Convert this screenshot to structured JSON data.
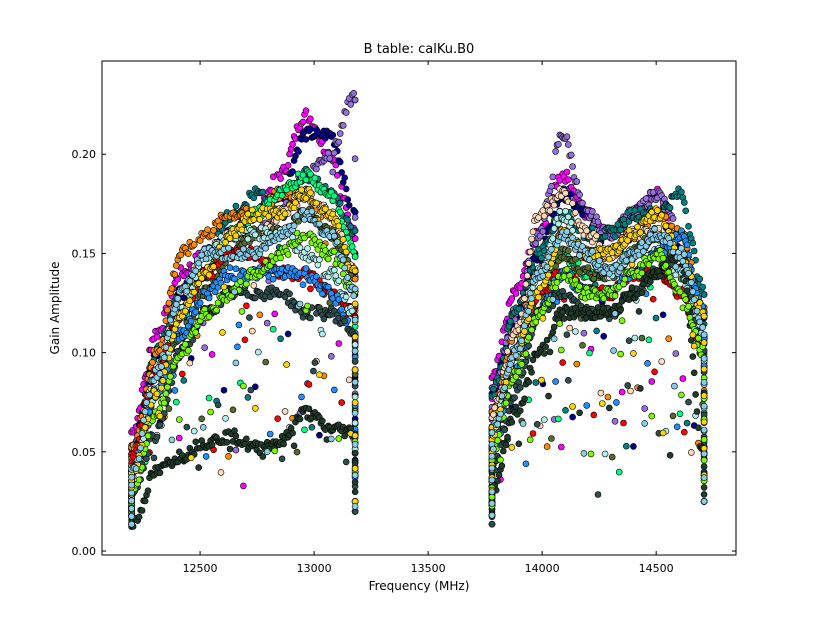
{
  "chart_data": {
    "type": "scatter",
    "title": "B table: calKu.B0",
    "xlabel": "Frequency (MHz)",
    "ylabel": "Gain Amplitude",
    "xlim": [
      12070,
      14850
    ],
    "ylim": [
      -0.002,
      0.247
    ],
    "x_ticks": [
      12500,
      13000,
      13500,
      14000,
      14500
    ],
    "x_tick_labels": [
      "12500",
      "13000",
      "13500",
      "14000",
      "14500"
    ],
    "y_ticks": [
      0.0,
      0.05,
      0.1,
      0.15,
      0.2
    ],
    "y_tick_labels": [
      "0.00",
      "0.05",
      "0.10",
      "0.15",
      "0.20"
    ],
    "grid": false,
    "legend": "none",
    "series": [
      {
        "color": "#ff00ff",
        "segments": [
          {
            "x_start": 12200,
            "x_end": 13180,
            "y": [
              0.06,
              0.11,
              0.14,
              0.15,
              0.16,
              0.17,
              0.19,
              0.22,
              0.2,
              0.16
            ],
            "dip": [
              0.03,
              0.05,
              0.04
            ]
          },
          {
            "x_start": 13780,
            "x_end": 14710,
            "y": [
              0.09,
              0.13,
              0.16,
              0.19,
              0.17,
              0.16,
              0.17,
              0.18,
              0.15,
              0.12
            ],
            "dip": [
              0.03,
              0.04,
              0.05
            ]
          }
        ]
      },
      {
        "color": "#00008b",
        "segments": [
          {
            "x_start": 12200,
            "x_end": 13180,
            "y": [
              0.05,
              0.1,
              0.13,
              0.15,
              0.16,
              0.17,
              0.18,
              0.21,
              0.21,
              0.17
            ],
            "dip": [
              0.04,
              0.06,
              0.05
            ]
          },
          {
            "x_start": 13780,
            "x_end": 14710,
            "y": [
              0.08,
              0.12,
              0.15,
              0.18,
              0.17,
              0.15,
              0.16,
              0.17,
              0.15,
              0.12
            ],
            "dip": [
              0.04,
              0.05,
              0.05
            ]
          }
        ]
      },
      {
        "color": "#9370db",
        "segments": [
          {
            "x_start": 12200,
            "x_end": 13180,
            "y": [
              0.05,
              0.09,
              0.12,
              0.14,
              0.15,
              0.16,
              0.17,
              0.19,
              0.2,
              0.23
            ],
            "dip": [
              0.03,
              0.05,
              0.04
            ]
          },
          {
            "x_start": 13780,
            "x_end": 14710,
            "y": [
              0.08,
              0.12,
              0.16,
              0.21,
              0.17,
              0.16,
              0.17,
              0.18,
              0.16,
              0.12
            ],
            "dip": [
              0.03,
              0.04,
              0.05
            ]
          }
        ]
      },
      {
        "color": "#008080",
        "segments": [
          {
            "x_start": 12200,
            "x_end": 13180,
            "y": [
              0.05,
              0.1,
              0.13,
              0.15,
              0.17,
              0.18,
              0.17,
              0.19,
              0.18,
              0.16
            ],
            "dip": [
              0.04,
              0.05,
              0.05
            ]
          },
          {
            "x_start": 13780,
            "x_end": 14710,
            "y": [
              0.08,
              0.12,
              0.15,
              0.17,
              0.16,
              0.16,
              0.17,
              0.17,
              0.18,
              0.13
            ],
            "dip": [
              0.04,
              0.05,
              0.05
            ]
          }
        ]
      },
      {
        "color": "#ff8c00",
        "segments": [
          {
            "x_start": 12200,
            "x_end": 13180,
            "y": [
              0.05,
              0.1,
              0.15,
              0.16,
              0.17,
              0.17,
              0.18,
              0.18,
              0.16,
              0.14
            ],
            "dip": [
              0.04,
              0.06,
              0.05
            ]
          },
          {
            "x_start": 13780,
            "x_end": 14710,
            "y": [
              0.07,
              0.11,
              0.14,
              0.16,
              0.15,
              0.15,
              0.16,
              0.17,
              0.16,
              0.12
            ],
            "dip": [
              0.04,
              0.05,
              0.05
            ]
          }
        ]
      },
      {
        "color": "#00ff7f",
        "segments": [
          {
            "x_start": 12200,
            "x_end": 13180,
            "y": [
              0.04,
              0.09,
              0.12,
              0.14,
              0.16,
              0.17,
              0.18,
              0.19,
              0.18,
              0.15
            ],
            "dip": [
              0.04,
              0.05,
              0.05
            ]
          },
          {
            "x_start": 13780,
            "x_end": 14710,
            "y": [
              0.06,
              0.1,
              0.13,
              0.15,
              0.14,
              0.14,
              0.15,
              0.16,
              0.14,
              0.11
            ],
            "dip": [
              0.04,
              0.05,
              0.05
            ]
          }
        ]
      },
      {
        "color": "#ffdab9",
        "segments": [
          {
            "x_start": 12200,
            "x_end": 13180,
            "y": [
              0.04,
              0.09,
              0.13,
              0.15,
              0.16,
              0.16,
              0.17,
              0.18,
              0.17,
              0.14
            ],
            "dip": [
              0.04,
              0.05,
              0.05
            ]
          },
          {
            "x_start": 13780,
            "x_end": 14710,
            "y": [
              0.07,
              0.11,
              0.17,
              0.18,
              0.16,
              0.15,
              0.16,
              0.16,
              0.15,
              0.12
            ],
            "dip": [
              0.04,
              0.05,
              0.05
            ]
          }
        ]
      },
      {
        "color": "#556b2f",
        "segments": [
          {
            "x_start": 12200,
            "x_end": 13180,
            "y": [
              0.04,
              0.08,
              0.11,
              0.13,
              0.15,
              0.16,
              0.16,
              0.17,
              0.16,
              0.14
            ],
            "dip": [
              0.04,
              0.05,
              0.04
            ]
          },
          {
            "x_start": 13780,
            "x_end": 14710,
            "y": [
              0.06,
              0.1,
              0.13,
              0.15,
              0.14,
              0.14,
              0.15,
              0.16,
              0.14,
              0.11
            ],
            "dip": [
              0.04,
              0.05,
              0.05
            ]
          }
        ]
      },
      {
        "color": "#ff0000",
        "segments": [
          {
            "x_start": 12200,
            "x_end": 13180,
            "y": [
              0.05,
              0.09,
              0.12,
              0.14,
              0.15,
              0.15,
              0.14,
              0.14,
              0.13,
              0.12
            ],
            "dip": [
              0.04,
              0.05,
              0.05
            ]
          },
          {
            "x_start": 13780,
            "x_end": 14710,
            "y": [
              0.06,
              0.1,
              0.13,
              0.14,
              0.13,
              0.13,
              0.14,
              0.14,
              0.13,
              0.1
            ],
            "dip": [
              0.04,
              0.05,
              0.05
            ]
          }
        ]
      },
      {
        "color": "#afeeee",
        "segments": [
          {
            "x_start": 12200,
            "x_end": 13180,
            "y": [
              0.04,
              0.08,
              0.12,
              0.15,
              0.16,
              0.16,
              0.16,
              0.15,
              0.14,
              0.12
            ],
            "dip": [
              0.03,
              0.05,
              0.05
            ]
          },
          {
            "x_start": 13780,
            "x_end": 14710,
            "y": [
              0.06,
              0.1,
              0.14,
              0.17,
              0.15,
              0.14,
              0.15,
              0.15,
              0.14,
              0.11
            ],
            "dip": [
              0.04,
              0.05,
              0.05
            ]
          }
        ]
      },
      {
        "color": "#1e90ff",
        "segments": [
          {
            "x_start": 12200,
            "x_end": 13180,
            "y": [
              0.04,
              0.08,
              0.11,
              0.13,
              0.14,
              0.14,
              0.14,
              0.14,
              0.13,
              0.11
            ],
            "dip": [
              0.04,
              0.05,
              0.05
            ]
          },
          {
            "x_start": 13780,
            "x_end": 14710,
            "y": [
              0.05,
              0.09,
              0.12,
              0.14,
              0.13,
              0.13,
              0.14,
              0.15,
              0.16,
              0.12
            ],
            "dip": [
              0.04,
              0.05,
              0.05
            ]
          }
        ]
      },
      {
        "color": "#2f4f4f",
        "segments": [
          {
            "x_start": 12200,
            "x_end": 13180,
            "y": [
              0.03,
              0.06,
              0.1,
              0.12,
              0.13,
              0.13,
              0.13,
              0.12,
              0.12,
              0.11
            ],
            "dip": [
              0.04,
              0.05,
              0.04
            ]
          },
          {
            "x_start": 13780,
            "x_end": 14710,
            "y": [
              0.04,
              0.08,
              0.12,
              0.13,
              0.12,
              0.12,
              0.13,
              0.14,
              0.15,
              0.1
            ],
            "dip": [
              0.03,
              0.04,
              0.05
            ]
          }
        ]
      },
      {
        "color": "#1f3b2a",
        "segments": [
          {
            "x_start": 12200,
            "x_end": 13180,
            "y": [
              0.012,
              0.04,
              0.048,
              0.055,
              0.058,
              0.052,
              0.055,
              0.07,
              0.062,
              0.06
            ],
            "dip": [
              0.045,
              0.05,
              0.05
            ]
          },
          {
            "x_start": 13780,
            "x_end": 14710,
            "y": [
              0.03,
              0.07,
              0.1,
              0.12,
              0.12,
              0.12,
              0.13,
              0.14,
              0.15,
              0.05
            ],
            "dip": [
              0.04,
              0.05,
              0.05
            ]
          }
        ]
      },
      {
        "color": "#7cfc00",
        "segments": [
          {
            "x_start": 12200,
            "x_end": 13180,
            "y": [
              0.03,
              0.07,
              0.1,
              0.12,
              0.13,
              0.14,
              0.15,
              0.16,
              0.15,
              0.13
            ],
            "dip": [
              0.04,
              0.05,
              0.05
            ]
          },
          {
            "x_start": 13780,
            "x_end": 14710,
            "y": [
              0.05,
              0.09,
              0.12,
              0.14,
              0.13,
              0.13,
              0.14,
              0.15,
              0.13,
              0.1
            ],
            "dip": [
              0.04,
              0.05,
              0.05
            ]
          }
        ]
      },
      {
        "color": "#ffd700",
        "segments": [
          {
            "x_start": 12200,
            "x_end": 13180,
            "y": [
              0.04,
              0.08,
              0.12,
              0.14,
              0.16,
              0.17,
              0.17,
              0.18,
              0.17,
              0.14
            ],
            "dip": [
              0.04,
              0.05,
              0.05
            ]
          },
          {
            "x_start": 13780,
            "x_end": 14710,
            "y": [
              0.06,
              0.1,
              0.13,
              0.16,
              0.15,
              0.15,
              0.16,
              0.17,
              0.15,
              0.12
            ],
            "dip": [
              0.04,
              0.05,
              0.05
            ]
          }
        ]
      },
      {
        "color": "#87ceeb",
        "segments": [
          {
            "x_start": 12200,
            "x_end": 13180,
            "y": [
              0.04,
              0.09,
              0.13,
              0.15,
              0.15,
              0.15,
              0.16,
              0.17,
              0.16,
              0.13
            ],
            "dip": [
              0.03,
              0.04,
              0.045
            ]
          },
          {
            "x_start": 13780,
            "x_end": 14710,
            "y": [
              0.06,
              0.1,
              0.14,
              0.16,
              0.15,
              0.14,
              0.15,
              0.16,
              0.15,
              0.11
            ],
            "dip": [
              0.04,
              0.05,
              0.05
            ]
          }
        ]
      }
    ]
  }
}
